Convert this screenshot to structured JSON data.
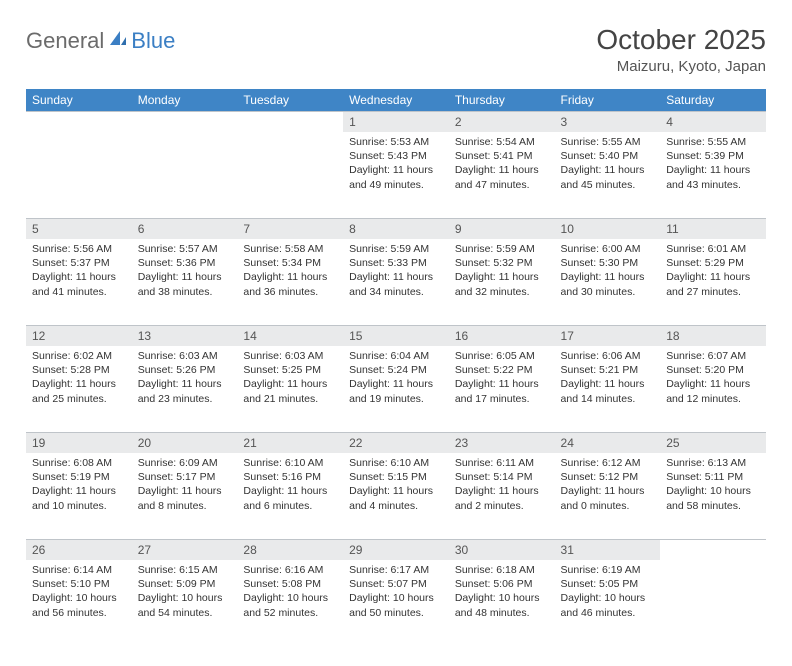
{
  "logo": {
    "text1": "General",
    "text2": "Blue"
  },
  "title": "October 2025",
  "location": "Maizuru, Kyoto, Japan",
  "colors": {
    "header_bg": "#3f85c6",
    "header_text": "#ffffff",
    "daynum_bg": "#e9eaeb",
    "daynum_text": "#555555",
    "border": "#bfc4c9",
    "body_text": "#333333",
    "logo_gray": "#6b6b6b",
    "logo_blue": "#3b7fc4"
  },
  "weekdays": [
    "Sunday",
    "Monday",
    "Tuesday",
    "Wednesday",
    "Thursday",
    "Friday",
    "Saturday"
  ],
  "weeks": [
    [
      null,
      null,
      null,
      {
        "n": "1",
        "sr": "5:53 AM",
        "ss": "5:43 PM",
        "dl": "11 hours and 49 minutes."
      },
      {
        "n": "2",
        "sr": "5:54 AM",
        "ss": "5:41 PM",
        "dl": "11 hours and 47 minutes."
      },
      {
        "n": "3",
        "sr": "5:55 AM",
        "ss": "5:40 PM",
        "dl": "11 hours and 45 minutes."
      },
      {
        "n": "4",
        "sr": "5:55 AM",
        "ss": "5:39 PM",
        "dl": "11 hours and 43 minutes."
      }
    ],
    [
      {
        "n": "5",
        "sr": "5:56 AM",
        "ss": "5:37 PM",
        "dl": "11 hours and 41 minutes."
      },
      {
        "n": "6",
        "sr": "5:57 AM",
        "ss": "5:36 PM",
        "dl": "11 hours and 38 minutes."
      },
      {
        "n": "7",
        "sr": "5:58 AM",
        "ss": "5:34 PM",
        "dl": "11 hours and 36 minutes."
      },
      {
        "n": "8",
        "sr": "5:59 AM",
        "ss": "5:33 PM",
        "dl": "11 hours and 34 minutes."
      },
      {
        "n": "9",
        "sr": "5:59 AM",
        "ss": "5:32 PM",
        "dl": "11 hours and 32 minutes."
      },
      {
        "n": "10",
        "sr": "6:00 AM",
        "ss": "5:30 PM",
        "dl": "11 hours and 30 minutes."
      },
      {
        "n": "11",
        "sr": "6:01 AM",
        "ss": "5:29 PM",
        "dl": "11 hours and 27 minutes."
      }
    ],
    [
      {
        "n": "12",
        "sr": "6:02 AM",
        "ss": "5:28 PM",
        "dl": "11 hours and 25 minutes."
      },
      {
        "n": "13",
        "sr": "6:03 AM",
        "ss": "5:26 PM",
        "dl": "11 hours and 23 minutes."
      },
      {
        "n": "14",
        "sr": "6:03 AM",
        "ss": "5:25 PM",
        "dl": "11 hours and 21 minutes."
      },
      {
        "n": "15",
        "sr": "6:04 AM",
        "ss": "5:24 PM",
        "dl": "11 hours and 19 minutes."
      },
      {
        "n": "16",
        "sr": "6:05 AM",
        "ss": "5:22 PM",
        "dl": "11 hours and 17 minutes."
      },
      {
        "n": "17",
        "sr": "6:06 AM",
        "ss": "5:21 PM",
        "dl": "11 hours and 14 minutes."
      },
      {
        "n": "18",
        "sr": "6:07 AM",
        "ss": "5:20 PM",
        "dl": "11 hours and 12 minutes."
      }
    ],
    [
      {
        "n": "19",
        "sr": "6:08 AM",
        "ss": "5:19 PM",
        "dl": "11 hours and 10 minutes."
      },
      {
        "n": "20",
        "sr": "6:09 AM",
        "ss": "5:17 PM",
        "dl": "11 hours and 8 minutes."
      },
      {
        "n": "21",
        "sr": "6:10 AM",
        "ss": "5:16 PM",
        "dl": "11 hours and 6 minutes."
      },
      {
        "n": "22",
        "sr": "6:10 AM",
        "ss": "5:15 PM",
        "dl": "11 hours and 4 minutes."
      },
      {
        "n": "23",
        "sr": "6:11 AM",
        "ss": "5:14 PM",
        "dl": "11 hours and 2 minutes."
      },
      {
        "n": "24",
        "sr": "6:12 AM",
        "ss": "5:12 PM",
        "dl": "11 hours and 0 minutes."
      },
      {
        "n": "25",
        "sr": "6:13 AM",
        "ss": "5:11 PM",
        "dl": "10 hours and 58 minutes."
      }
    ],
    [
      {
        "n": "26",
        "sr": "6:14 AM",
        "ss": "5:10 PM",
        "dl": "10 hours and 56 minutes."
      },
      {
        "n": "27",
        "sr": "6:15 AM",
        "ss": "5:09 PM",
        "dl": "10 hours and 54 minutes."
      },
      {
        "n": "28",
        "sr": "6:16 AM",
        "ss": "5:08 PM",
        "dl": "10 hours and 52 minutes."
      },
      {
        "n": "29",
        "sr": "6:17 AM",
        "ss": "5:07 PM",
        "dl": "10 hours and 50 minutes."
      },
      {
        "n": "30",
        "sr": "6:18 AM",
        "ss": "5:06 PM",
        "dl": "10 hours and 48 minutes."
      },
      {
        "n": "31",
        "sr": "6:19 AM",
        "ss": "5:05 PM",
        "dl": "10 hours and 46 minutes."
      },
      null
    ]
  ],
  "labels": {
    "sunrise": "Sunrise:",
    "sunset": "Sunset:",
    "daylight": "Daylight:"
  }
}
